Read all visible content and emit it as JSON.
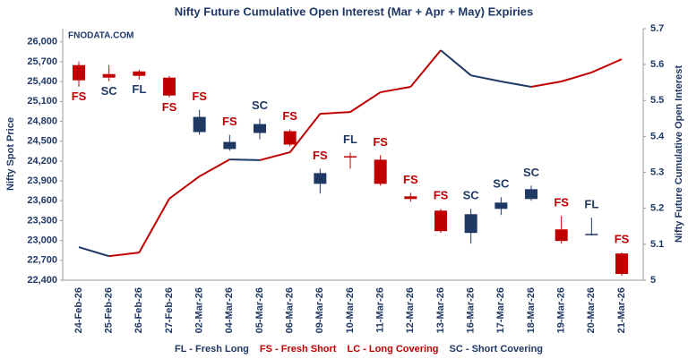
{
  "chart_data": {
    "type": "candlestick",
    "title": "Nifty Future Cumulative Open Interest (Mar + Apr + May) Expiries",
    "watermark": "FNODATA.COM",
    "y_label": "Nifty Spot Price",
    "y2_label": "Nifty Future Cumulative Open Interest",
    "categories": [
      "24-Feb-26",
      "25-Feb-26",
      "26-Feb-26",
      "27-Feb-26",
      "02-Mar-26",
      "04-Mar-26",
      "05-Mar-26",
      "06-Mar-26",
      "09-Mar-26",
      "10-Mar-26",
      "11-Mar-26",
      "12-Mar-26",
      "13-Mar-26",
      "16-Mar-26",
      "17-Mar-26",
      "18-Mar-26",
      "19-Mar-26",
      "20-Mar-26",
      "21-Mar-26"
    ],
    "candles": [
      {
        "open": 25649,
        "high": 25703,
        "low": 25325,
        "close": 25420,
        "signal": "FS"
      },
      {
        "open": 25514,
        "high": 25649,
        "low": 25406,
        "close": 25460,
        "signal": "SC"
      },
      {
        "open": 25554,
        "high": 25581,
        "low": 25433,
        "close": 25487,
        "signal": "FL"
      },
      {
        "open": 25460,
        "high": 25487,
        "low": 25163,
        "close": 25190,
        "signal": "FS"
      },
      {
        "open": 24638,
        "high": 24975,
        "low": 24597,
        "close": 24867,
        "signal": "FS"
      },
      {
        "open": 24382,
        "high": 24597,
        "low": 24355,
        "close": 24489,
        "signal": "FS"
      },
      {
        "open": 24624,
        "high": 24840,
        "low": 24530,
        "close": 24759,
        "signal": "SC"
      },
      {
        "open": 24651,
        "high": 24678,
        "low": 24422,
        "close": 24449,
        "signal": "FS"
      },
      {
        "open": 23856,
        "high": 24085,
        "low": 23708,
        "close": 24018,
        "signal": "FS"
      },
      {
        "open": 24274,
        "high": 24328,
        "low": 24085,
        "close": 24260,
        "signal": "FL"
      },
      {
        "open": 24220,
        "high": 24287,
        "low": 23829,
        "close": 23856,
        "signal": "FS"
      },
      {
        "open": 23667,
        "high": 23721,
        "low": 23586,
        "close": 23627,
        "signal": "FS"
      },
      {
        "open": 23451,
        "high": 23478,
        "low": 23114,
        "close": 23141,
        "signal": "FS"
      },
      {
        "open": 23114,
        "high": 23478,
        "low": 22953,
        "close": 23397,
        "signal": "SC"
      },
      {
        "open": 23478,
        "high": 23654,
        "low": 23384,
        "close": 23573,
        "signal": "SC"
      },
      {
        "open": 23627,
        "high": 23829,
        "low": 23600,
        "close": 23775,
        "signal": "SC"
      },
      {
        "open": 23168,
        "high": 23371,
        "low": 22953,
        "close": 22993,
        "signal": "FS"
      },
      {
        "open": 23087,
        "high": 23344,
        "low": 23074,
        "close": 23101,
        "signal": "FL"
      },
      {
        "open": 22804,
        "high": 22817,
        "low": 22467,
        "close": 22494,
        "signal": "FS"
      }
    ],
    "up_color": "#1f3864",
    "down_color": "#c00000",
    "oi_series": {
      "axis": "y2",
      "rise_color": "#c00000",
      "fall_color": "#1f3864",
      "values": [
        5.092,
        5.067,
        5.077,
        5.227,
        5.289,
        5.336,
        5.334,
        5.356,
        5.463,
        5.468,
        5.523,
        5.538,
        5.64,
        5.57,
        5.553,
        5.538,
        5.553,
        5.578,
        5.615
      ]
    },
    "ylim": [
      22400,
      26200
    ],
    "yticks": [
      {
        "value": 22400,
        "label": "22,400"
      },
      {
        "value": 22700,
        "label": "22,700"
      },
      {
        "value": 23000,
        "label": "23,000"
      },
      {
        "value": 23300,
        "label": "23,300"
      },
      {
        "value": 23600,
        "label": "23,600"
      },
      {
        "value": 23900,
        "label": "23,900"
      },
      {
        "value": 24200,
        "label": "24,200"
      },
      {
        "value": 24500,
        "label": "24,500"
      },
      {
        "value": 24800,
        "label": "24,800"
      },
      {
        "value": 25100,
        "label": "25,100"
      },
      {
        "value": 25400,
        "label": "25,400"
      },
      {
        "value": 25700,
        "label": "25,700"
      },
      {
        "value": 26000,
        "label": "26,000"
      }
    ],
    "y2lim": [
      5,
      5.7
    ],
    "y2ticks": [
      5,
      5.1,
      5.2,
      5.3,
      5.4,
      5.5,
      5.6,
      5.7
    ],
    "legend": [
      {
        "text": "FL - Fresh Long",
        "color": "#1f3864"
      },
      {
        "text": "FS - Fresh Short",
        "color": "#c00000"
      },
      {
        "text": "LC - Long Covering",
        "color": "#c00000"
      },
      {
        "text": "SC - Short Covering",
        "color": "#1f3864"
      }
    ]
  }
}
